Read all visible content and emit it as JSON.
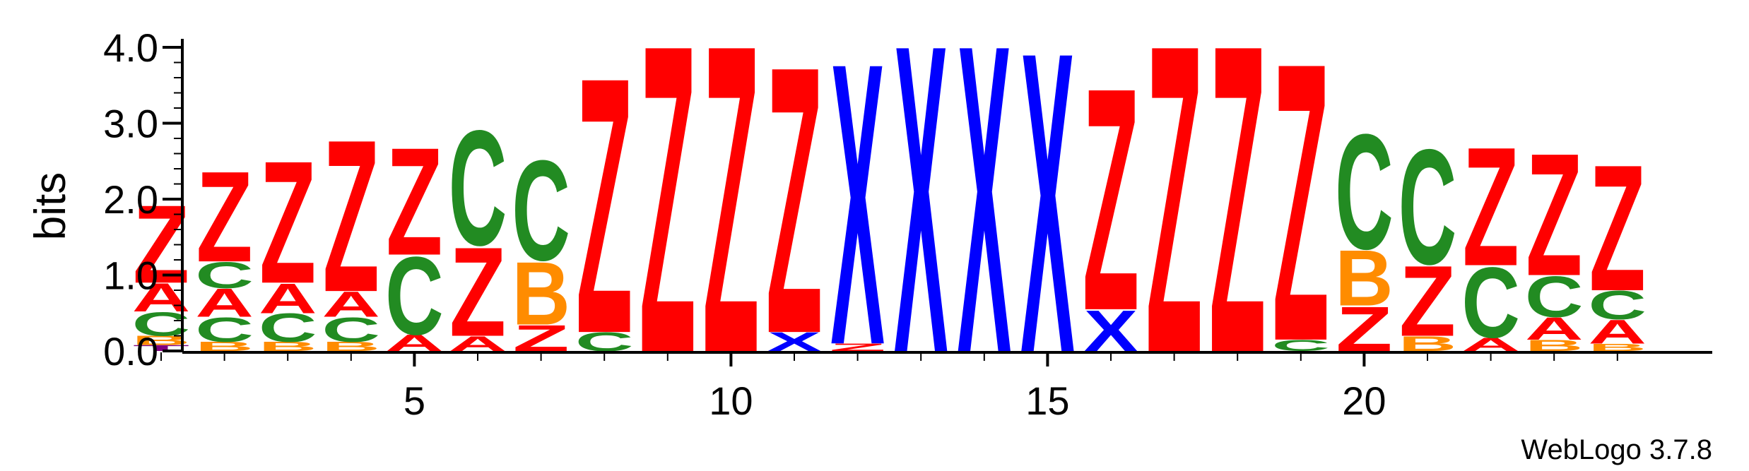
{
  "chart_data": {
    "type": "sequence-logo",
    "ylabel": "bits",
    "ylim": [
      0,
      4.0
    ],
    "y_ticks": [
      {
        "value": 0.0,
        "label": "0.0"
      },
      {
        "value": 1.0,
        "label": "1.0"
      },
      {
        "value": 2.0,
        "label": "2.0"
      },
      {
        "value": 3.0,
        "label": "3.0"
      },
      {
        "value": 4.0,
        "label": "4.0"
      }
    ],
    "x_range": [
      1,
      24
    ],
    "x_ticks": [
      {
        "value": 5,
        "label": "5"
      },
      {
        "value": 10,
        "label": "10"
      },
      {
        "value": 15,
        "label": "15"
      },
      {
        "value": 20,
        "label": "20"
      }
    ],
    "credit": "WebLogo 3.7.8",
    "colors": {
      "Z": "#ff0000",
      "A": "#ff0000",
      "X": "#0000ff",
      "C": "#228b22",
      "B": "#ff8c00",
      "T": "#800080"
    },
    "positions": [
      {
        "pos": 1,
        "stack": [
          {
            "letter": "T",
            "h": 0.08
          },
          {
            "letter": "B",
            "h": 0.12
          },
          {
            "letter": "C",
            "h": 0.32
          },
          {
            "letter": "A",
            "h": 0.38
          },
          {
            "letter": "Z",
            "h": 1.05
          }
        ]
      },
      {
        "pos": 2,
        "stack": [
          {
            "letter": "B",
            "h": 0.12
          },
          {
            "letter": "C",
            "h": 0.33
          },
          {
            "letter": "A",
            "h": 0.38
          },
          {
            "letter": "C",
            "h": 0.35
          },
          {
            "letter": "Z",
            "h": 1.22
          }
        ]
      },
      {
        "pos": 3,
        "stack": [
          {
            "letter": "B",
            "h": 0.12
          },
          {
            "letter": "C",
            "h": 0.38
          },
          {
            "letter": "A",
            "h": 0.4
          },
          {
            "letter": "Z",
            "h": 1.65
          }
        ]
      },
      {
        "pos": 4,
        "stack": [
          {
            "letter": "B",
            "h": 0.12
          },
          {
            "letter": "C",
            "h": 0.33
          },
          {
            "letter": "A",
            "h": 0.34
          },
          {
            "letter": "Z",
            "h": 2.05
          }
        ]
      },
      {
        "pos": 5,
        "stack": [
          {
            "letter": "A",
            "h": 0.22
          },
          {
            "letter": "C",
            "h": 1.05
          },
          {
            "letter": "Z",
            "h": 1.45
          }
        ]
      },
      {
        "pos": 6,
        "stack": [
          {
            "letter": "A",
            "h": 0.2
          },
          {
            "letter": "Z",
            "h": 1.2
          },
          {
            "letter": "C",
            "h": 1.55
          }
        ]
      },
      {
        "pos": 7,
        "stack": [
          {
            "letter": "Z",
            "h": 0.35
          },
          {
            "letter": "B",
            "h": 0.85
          },
          {
            "letter": "C",
            "h": 1.35
          }
        ]
      },
      {
        "pos": 8,
        "stack": [
          {
            "letter": "C",
            "h": 0.25
          },
          {
            "letter": "Z",
            "h": 3.45
          }
        ]
      },
      {
        "pos": 9,
        "stack": [
          {
            "letter": "Z",
            "h": 4.15
          }
        ]
      },
      {
        "pos": 10,
        "stack": [
          {
            "letter": "Z",
            "h": 4.15
          }
        ]
      },
      {
        "pos": 11,
        "stack": [
          {
            "letter": "X",
            "h": 0.25
          },
          {
            "letter": "Z",
            "h": 3.6
          }
        ]
      },
      {
        "pos": 12,
        "stack": [
          {
            "letter": "Z",
            "h": 0.1
          },
          {
            "letter": "X",
            "h": 3.8
          }
        ]
      },
      {
        "pos": 13,
        "stack": [
          {
            "letter": "X",
            "h": 4.15
          }
        ]
      },
      {
        "pos": 14,
        "stack": [
          {
            "letter": "X",
            "h": 4.15
          }
        ]
      },
      {
        "pos": 15,
        "stack": [
          {
            "letter": "X",
            "h": 4.05
          }
        ]
      },
      {
        "pos": 16,
        "stack": [
          {
            "letter": "X",
            "h": 0.55
          },
          {
            "letter": "Z",
            "h": 3.0
          }
        ]
      },
      {
        "pos": 17,
        "stack": [
          {
            "letter": "Z",
            "h": 4.15
          }
        ]
      },
      {
        "pos": 18,
        "stack": [
          {
            "letter": "Z",
            "h": 4.15
          }
        ]
      },
      {
        "pos": 19,
        "stack": [
          {
            "letter": "C",
            "h": 0.15
          },
          {
            "letter": "Z",
            "h": 3.75
          }
        ]
      },
      {
        "pos": 20,
        "stack": [
          {
            "letter": "Z",
            "h": 0.6
          },
          {
            "letter": "B",
            "h": 0.75
          },
          {
            "letter": "C",
            "h": 1.55
          }
        ]
      },
      {
        "pos": 21,
        "stack": [
          {
            "letter": "B",
            "h": 0.2
          },
          {
            "letter": "Z",
            "h": 0.95
          },
          {
            "letter": "C",
            "h": 1.55
          }
        ]
      },
      {
        "pos": 22,
        "stack": [
          {
            "letter": "A",
            "h": 0.18
          },
          {
            "letter": "C",
            "h": 0.95
          },
          {
            "letter": "Z",
            "h": 1.6
          }
        ]
      },
      {
        "pos": 23,
        "stack": [
          {
            "letter": "B",
            "h": 0.15
          },
          {
            "letter": "A",
            "h": 0.3
          },
          {
            "letter": "C",
            "h": 0.55
          },
          {
            "letter": "Z",
            "h": 1.65
          }
        ]
      },
      {
        "pos": 24,
        "stack": [
          {
            "letter": "B",
            "h": 0.1
          },
          {
            "letter": "A",
            "h": 0.32
          },
          {
            "letter": "C",
            "h": 0.38
          },
          {
            "letter": "Z",
            "h": 1.7
          }
        ]
      }
    ]
  }
}
